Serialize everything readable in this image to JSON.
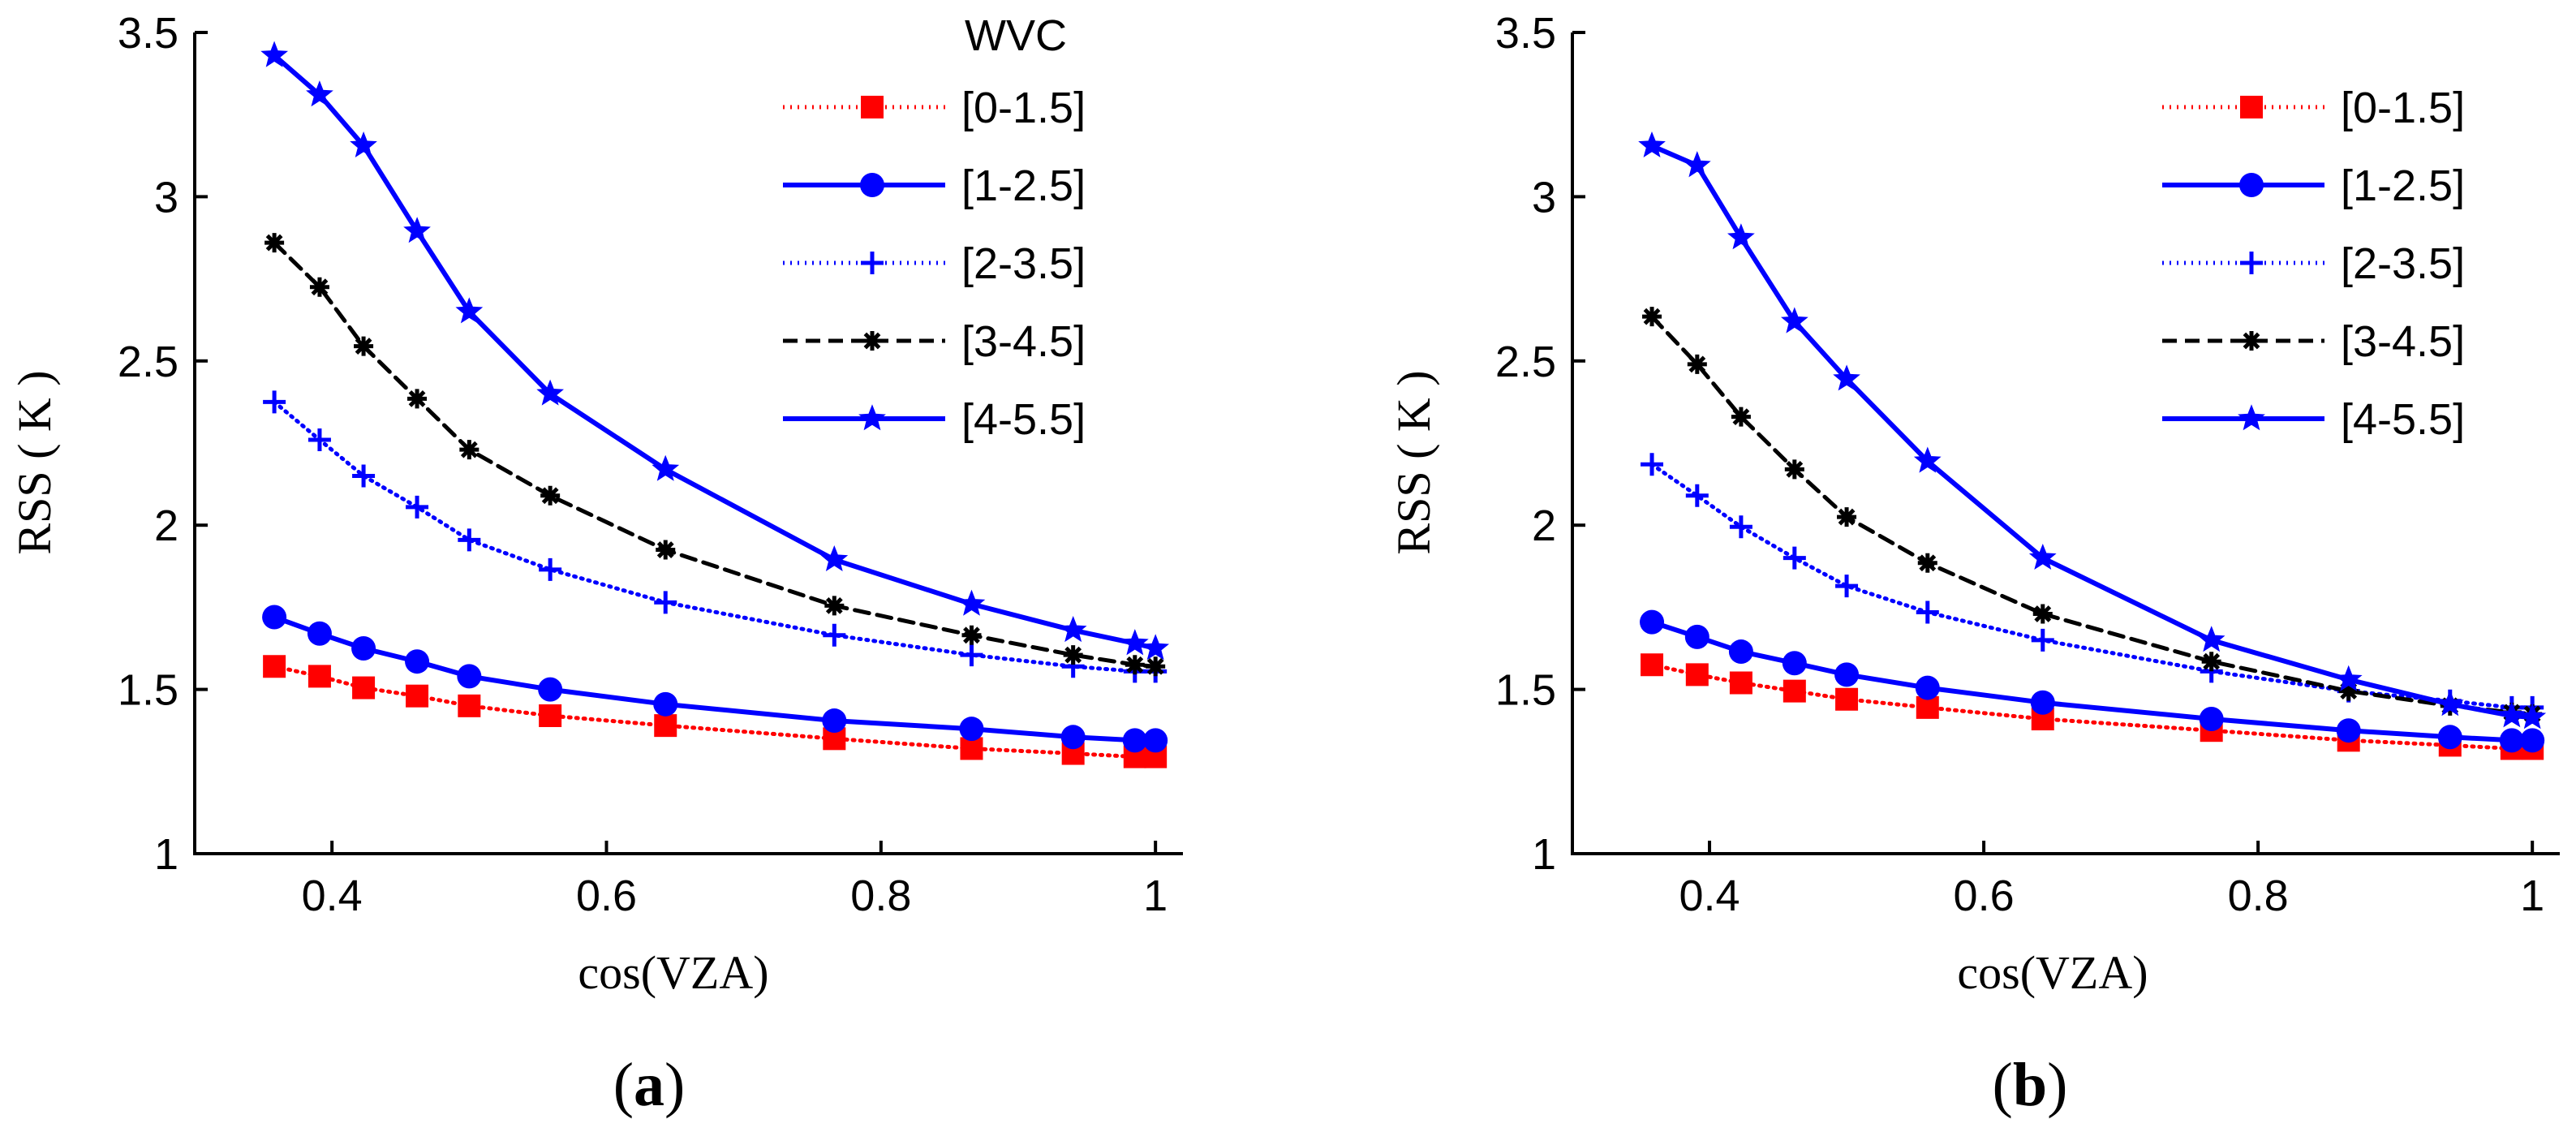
{
  "chart_data": [
    {
      "type": "line",
      "panel_label": {
        "open": "(",
        "letter": "a",
        "close": ")"
      },
      "legend_title": "WVC",
      "xlabel": "cos(VZA)",
      "ylabel": "RSS ( K )",
      "xlim": [
        0.3,
        1.02
      ],
      "ylim": [
        1,
        3.5
      ],
      "xticks": [
        "0.4",
        "0.6",
        "0.8",
        "1"
      ],
      "yticks": [
        "1",
        "1.5",
        "2",
        "2.5",
        "3",
        "3.5"
      ],
      "legend_position": "top-right",
      "x": [
        0.358,
        0.391,
        0.423,
        0.462,
        0.5,
        0.559,
        0.643,
        0.766,
        0.866,
        0.94,
        0.985,
        1.0
      ],
      "series": [
        {
          "name": "[0-1.5]",
          "color": "#ff0000",
          "line": "dotted",
          "marker": "square",
          "values": [
            1.57,
            1.54,
            1.505,
            1.48,
            1.45,
            1.42,
            1.39,
            1.35,
            1.32,
            1.305,
            1.295,
            1.295
          ]
        },
        {
          "name": "[1-2.5]",
          "color": "#0000ff",
          "line": "solid",
          "marker": "circle",
          "values": [
            1.72,
            1.67,
            1.625,
            1.585,
            1.54,
            1.5,
            1.455,
            1.405,
            1.38,
            1.355,
            1.345,
            1.345
          ]
        },
        {
          "name": "[2-3.5]",
          "color": "#0000ff",
          "line": "dotted",
          "marker": "plus",
          "values": [
            2.375,
            2.26,
            2.15,
            2.055,
            1.955,
            1.865,
            1.765,
            1.665,
            1.605,
            1.57,
            1.555,
            1.555
          ]
        },
        {
          "name": "[3-4.5]",
          "color": "#000000",
          "line": "dashed",
          "marker": "asterisk",
          "values": [
            2.86,
            2.725,
            2.545,
            2.385,
            2.23,
            2.09,
            1.925,
            1.755,
            1.665,
            1.605,
            1.575,
            1.57
          ]
        },
        {
          "name": "[4-5.5]",
          "color": "#0000ff",
          "line": "solid",
          "marker": "star",
          "values": [
            3.43,
            3.31,
            3.155,
            2.895,
            2.65,
            2.4,
            2.17,
            1.895,
            1.76,
            1.68,
            1.64,
            1.625
          ]
        }
      ]
    },
    {
      "type": "line",
      "panel_label": {
        "open": "(",
        "letter": "b",
        "close": ")"
      },
      "xlabel": "cos(VZA)",
      "ylabel": "RSS ( K )",
      "xlim": [
        0.3,
        1.02
      ],
      "ylim": [
        1,
        3.5
      ],
      "xticks": [
        "0.4",
        "0.6",
        "0.8",
        "1"
      ],
      "yticks": [
        "1",
        "1.5",
        "2",
        "2.5",
        "3",
        "3.5"
      ],
      "legend_position": "top-right",
      "x": [
        0.358,
        0.391,
        0.423,
        0.462,
        0.5,
        0.559,
        0.643,
        0.766,
        0.866,
        0.94,
        0.985,
        1.0
      ],
      "series": [
        {
          "name": "[0-1.5]",
          "color": "#ff0000",
          "line": "dotted",
          "marker": "square",
          "values": [
            1.575,
            1.545,
            1.52,
            1.495,
            1.47,
            1.445,
            1.41,
            1.375,
            1.345,
            1.33,
            1.32,
            1.32
          ]
        },
        {
          "name": "[1-2.5]",
          "color": "#0000ff",
          "line": "solid",
          "marker": "circle",
          "values": [
            1.705,
            1.66,
            1.615,
            1.58,
            1.545,
            1.505,
            1.46,
            1.41,
            1.375,
            1.355,
            1.345,
            1.345
          ]
        },
        {
          "name": "[2-3.5]",
          "color": "#0000ff",
          "line": "dotted",
          "marker": "plus",
          "values": [
            2.185,
            2.09,
            1.995,
            1.9,
            1.815,
            1.735,
            1.65,
            1.555,
            1.495,
            1.465,
            1.445,
            1.445
          ]
        },
        {
          "name": "[3-4.5]",
          "color": "#000000",
          "line": "dashed",
          "marker": "asterisk",
          "values": [
            2.635,
            2.49,
            2.33,
            2.17,
            2.025,
            1.885,
            1.73,
            1.585,
            1.495,
            1.45,
            1.43,
            1.425
          ]
        },
        {
          "name": "[4-5.5]",
          "color": "#0000ff",
          "line": "solid",
          "marker": "star",
          "values": [
            3.155,
            3.095,
            2.875,
            2.62,
            2.445,
            2.195,
            1.9,
            1.65,
            1.53,
            1.455,
            1.42,
            1.415
          ]
        }
      ]
    }
  ]
}
